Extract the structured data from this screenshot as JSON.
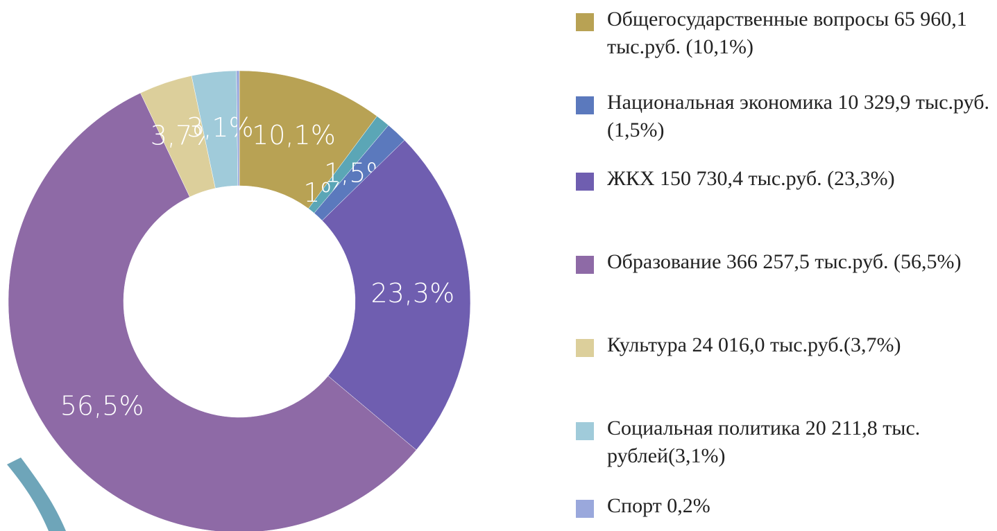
{
  "chart_data": {
    "type": "donut",
    "categories": [
      "Общегосударственные вопросы 65 960,1 тыс.руб. (10,1%)",
      null,
      "Национальная экономика 10 329,9 тыс.руб. (1,5%)",
      "ЖКХ 150 730,4 тыс.руб. (23,3%)",
      "Образование 366 257,5 тыс.руб. (56,5%)",
      "Культура 24 016,0 тыс.руб.(3,7%)",
      "Социальная политика 20 211,8 тыс. рублей(3,1%)",
      "Спорт 0,2%"
    ],
    "values": [
      10.1,
      1,
      1.5,
      23.3,
      56.5,
      3.7,
      3.1,
      0.2
    ],
    "value_labels": [
      "10,1%",
      "1%",
      "1,5%",
      "23,3%",
      "56,5%",
      "3,7%",
      "3,1%",
      null
    ],
    "colors": [
      "#b8a254",
      "#5ba6b6",
      "#5b79bd",
      "#6f5eb0",
      "#8e6aa6",
      "#dccf9b",
      "#a0cbda",
      "#9aa8dc"
    ]
  }
}
